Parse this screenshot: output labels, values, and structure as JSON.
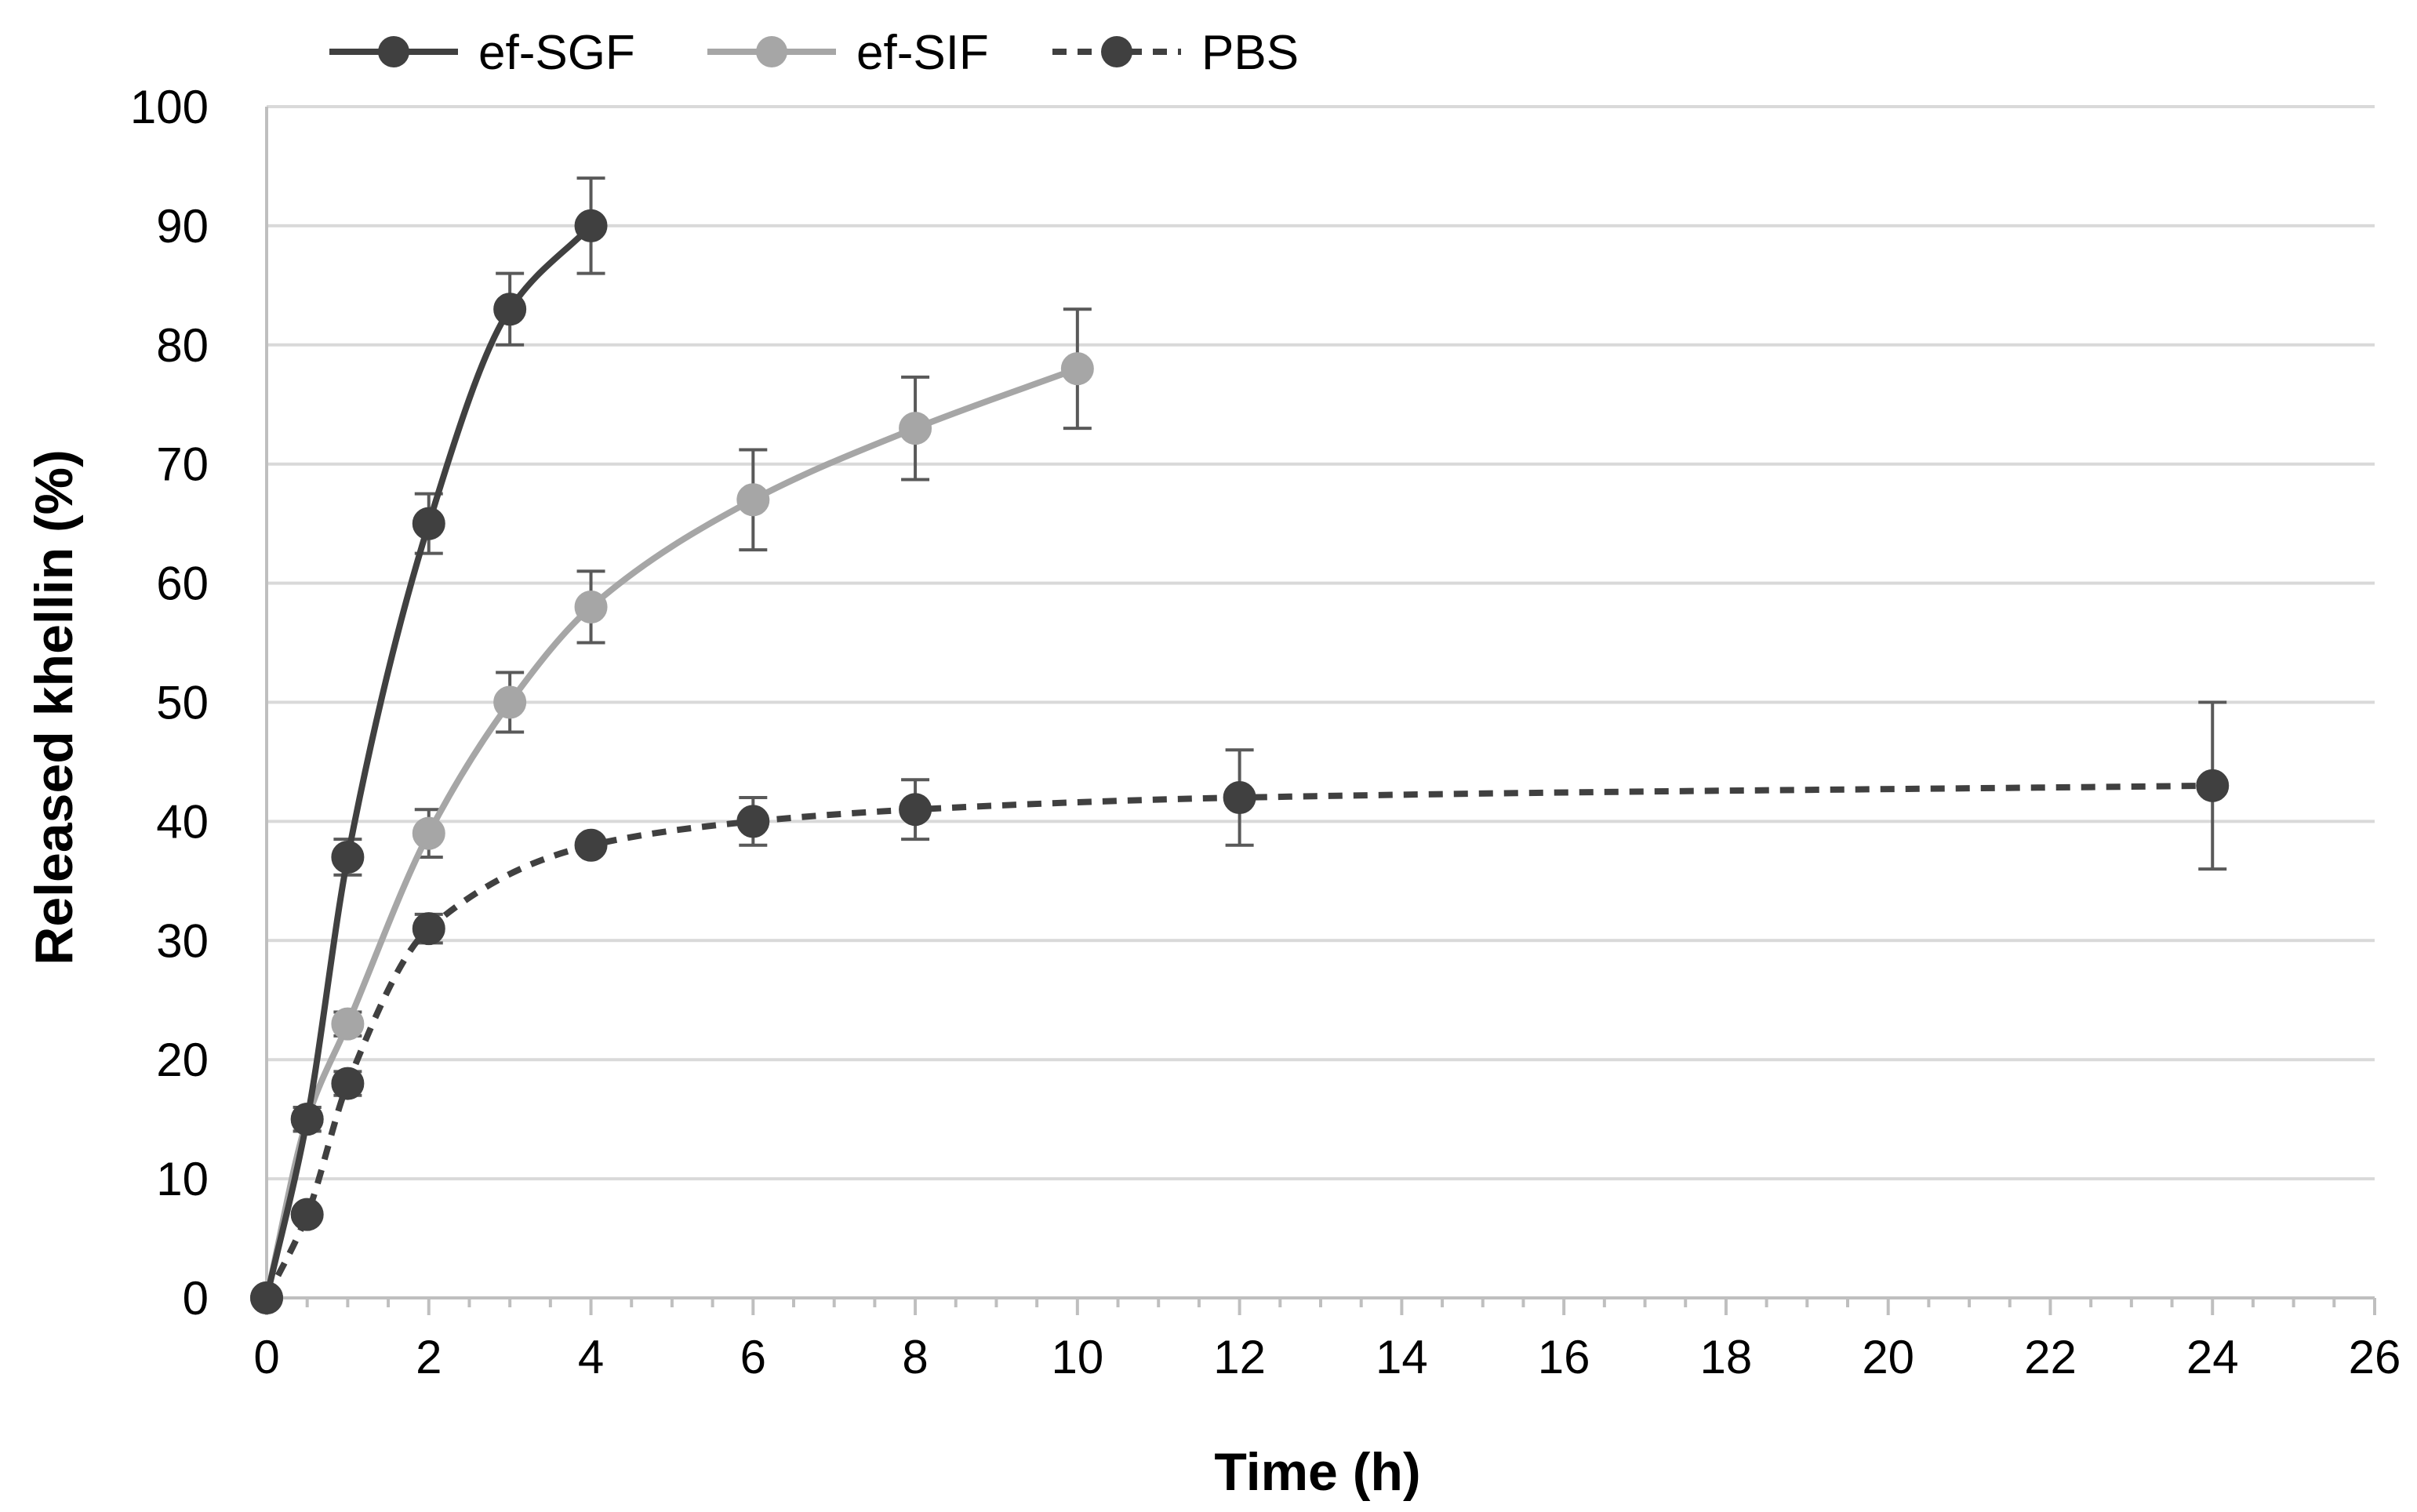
{
  "chart_data": {
    "type": "line",
    "title": "",
    "xlabel": "Time (h)",
    "ylabel": "Released khellin (%)",
    "xlim": [
      0,
      26
    ],
    "ylim": [
      0,
      100
    ],
    "x_ticks": [
      0,
      2,
      4,
      6,
      8,
      10,
      12,
      14,
      16,
      18,
      20,
      22,
      24,
      26
    ],
    "y_ticks": [
      0,
      10,
      20,
      30,
      40,
      50,
      60,
      70,
      80,
      90,
      100
    ],
    "x_minor_step": 0.5,
    "grid": "horizontal",
    "legend_position": "top-left",
    "series": [
      {
        "name": "ef-SGF",
        "color": "#404040",
        "line_style": "solid",
        "x": [
          0,
          0.5,
          1,
          2,
          3,
          4
        ],
        "y": [
          0,
          15,
          37,
          65,
          83,
          90
        ],
        "error": [
          0,
          1,
          1.5,
          2.5,
          3,
          4
        ]
      },
      {
        "name": "ef-SIF",
        "color": "#a6a6a6",
        "line_style": "solid",
        "x": [
          0,
          0.5,
          1,
          2,
          3,
          4,
          6,
          8,
          10
        ],
        "y": [
          0,
          15,
          23,
          39,
          50,
          58,
          67,
          73,
          78
        ],
        "error": [
          0,
          1,
          1,
          2,
          2.5,
          3,
          4.2,
          4.3,
          5
        ]
      },
      {
        "name": "PBS",
        "color": "#404040",
        "line_style": "dashed",
        "x": [
          0,
          0.5,
          1,
          2,
          4,
          6,
          8,
          12,
          24
        ],
        "y": [
          0,
          7,
          18,
          31,
          38,
          40,
          41,
          42,
          43
        ],
        "error": [
          0,
          0.5,
          1,
          1.2,
          0.5,
          2,
          2.5,
          4,
          7
        ]
      }
    ]
  }
}
